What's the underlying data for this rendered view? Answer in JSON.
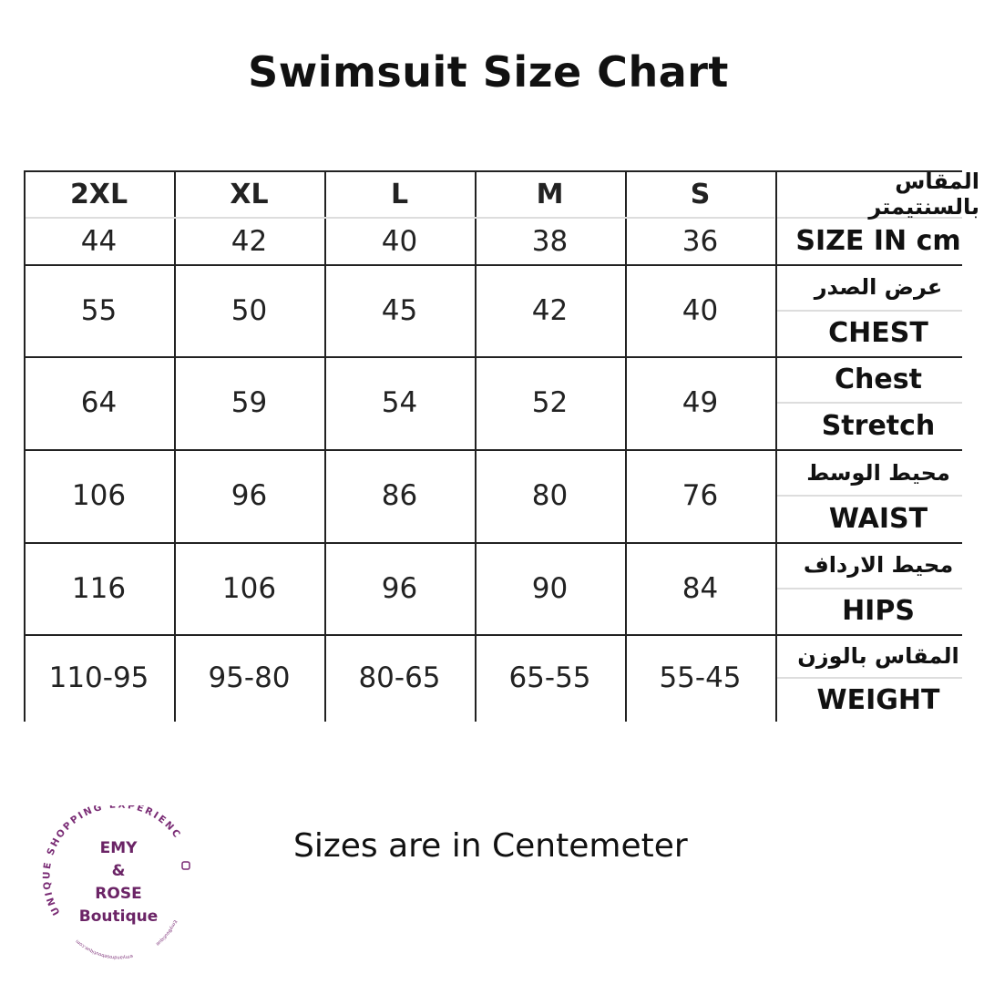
{
  "title": "Swimsuit Size Chart",
  "table": {
    "sizes": [
      "2XL",
      "XL",
      "L",
      "M",
      "S"
    ],
    "rows": [
      {
        "label_ar": "المقاس بالسنتيمتر",
        "label_en": "SIZE IN cm",
        "values": [
          "44",
          "42",
          "40",
          "38",
          "36"
        ]
      },
      {
        "label_ar": "عرض الصدر",
        "label_en": "CHEST",
        "values": [
          "55",
          "50",
          "45",
          "42",
          "40"
        ]
      },
      {
        "label_ar": "Chest",
        "label_en": "Stretch",
        "values": [
          "64",
          "59",
          "54",
          "52",
          "49"
        ]
      },
      {
        "label_ar": "محيط الوسط",
        "label_en": "WAIST",
        "values": [
          "106",
          "96",
          "86",
          "80",
          "76"
        ]
      },
      {
        "label_ar": "محيط الارداف",
        "label_en": "HIPS",
        "values": [
          "116",
          "106",
          "96",
          "90",
          "84"
        ]
      },
      {
        "label_ar": "المقاس بالوزن",
        "label_en": "WEIGHT",
        "values": [
          "110-95",
          "95-80",
          "80-65",
          "65-55",
          "55-45"
        ]
      }
    ]
  },
  "note": "Sizes are in Centemeter",
  "logo": {
    "ring_text": "UNIQUE SHOPPING EXPERIENCE",
    "line1": "EMY",
    "line2": "&",
    "line3": "ROSE",
    "line4": "Boutique",
    "website": "emyandroseboutique.com",
    "instagram": "emyandroseboutique",
    "facebook": "EmyBoutique",
    "color": "#6b2466"
  }
}
